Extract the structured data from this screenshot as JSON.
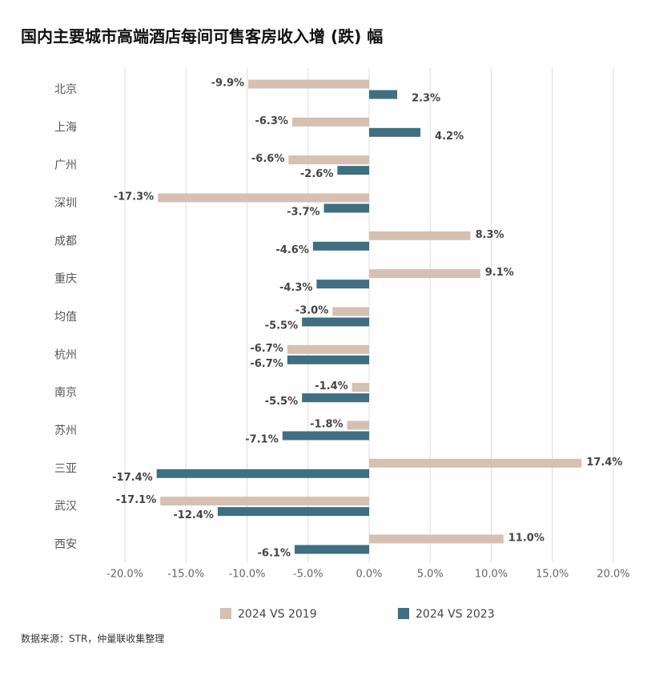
{
  "chart_data": {
    "type": "hbar",
    "title": "国内主要城市高端酒店每间可售客房收入增 (跌) 幅",
    "source": "数据来源：STR，仲量联收集整理",
    "categories": [
      "北京",
      "上海",
      "广州",
      "深圳",
      "成都",
      "重庆",
      "均值",
      "杭州",
      "南京",
      "苏州",
      "三亚",
      "武汉",
      "西安"
    ],
    "series": [
      {
        "name": "2024 VS 2019",
        "color": "#d5c0b1",
        "values": [
          -9.9,
          -6.3,
          -6.6,
          -17.3,
          8.3,
          9.1,
          -3.0,
          -6.7,
          -1.4,
          -1.8,
          17.4,
          -17.1,
          11.0
        ],
        "value_labels": [
          "-9.9%",
          "-6.3%",
          "-6.6%",
          "-17.3%",
          "8.3%",
          "9.1%",
          "-3.0%",
          "-6.7%",
          "-1.4%",
          "-1.8%",
          "17.4%",
          "-17.1%",
          "11.0%"
        ]
      },
      {
        "name": "2024 VS 2023",
        "color": "#3f6f80",
        "values": [
          2.3,
          4.2,
          -2.6,
          -3.7,
          -4.6,
          -4.3,
          -5.5,
          -6.7,
          -5.5,
          -7.1,
          -17.4,
          -12.4,
          -6.1
        ],
        "value_labels": [
          "2.3%",
          "4.2%",
          "-2.6%",
          "-3.7%",
          "-4.6%",
          "-4.3%",
          "-5.5%",
          "-6.7%",
          "-5.5%",
          "-7.1%",
          "-17.4%",
          "-12.4%",
          "-6.1%"
        ]
      }
    ],
    "xlim": [
      -20,
      20
    ],
    "xticks": [
      {
        "value": -20,
        "label": "-20.0%"
      },
      {
        "value": -15,
        "label": "-15.0%"
      },
      {
        "value": -10,
        "label": "-10.0%"
      },
      {
        "value": -5,
        "label": "-5.0%"
      },
      {
        "value": 0,
        "label": "0.0%"
      },
      {
        "value": 5,
        "label": "5.0%"
      },
      {
        "value": 10,
        "label": "10.0%"
      },
      {
        "value": 15,
        "label": "15.0%"
      },
      {
        "value": 20,
        "label": "20.0%"
      }
    ],
    "grid": true,
    "legend": "bottom"
  }
}
